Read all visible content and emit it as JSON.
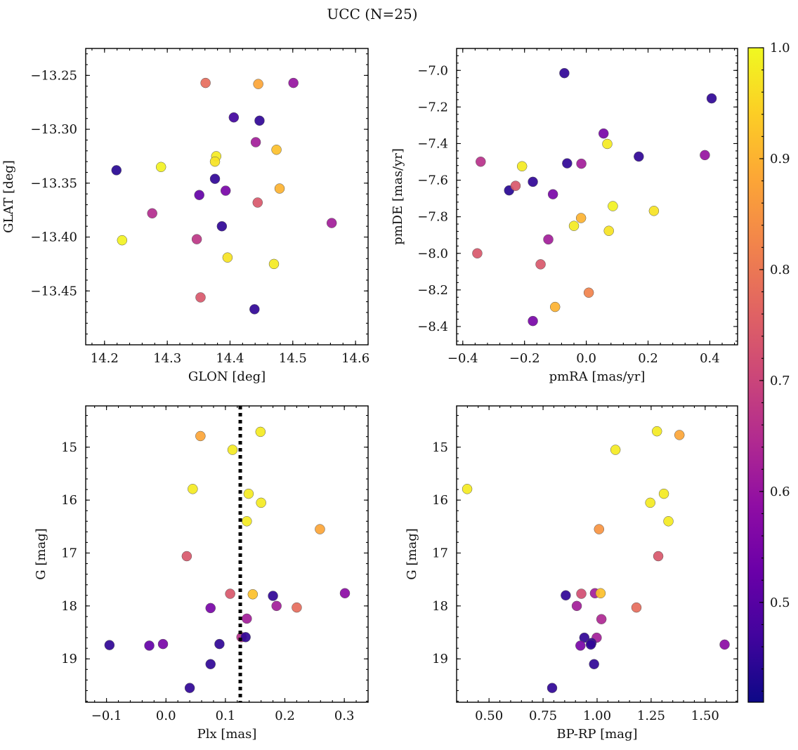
{
  "figure_title": "UCC (N=25)",
  "chart_data": [
    {
      "type": "scatter",
      "title": "",
      "xlabel": "GLON [deg]",
      "ylabel": "GLAT [deg]",
      "xlim": [
        14.17,
        14.62
      ],
      "ylim": [
        -13.5,
        -13.225
      ],
      "y_inverted": false,
      "xticks": [
        14.2,
        14.3,
        14.4,
        14.5,
        14.6
      ],
      "xticklabels": [
        "14.2",
        "14.3",
        "14.4",
        "14.5",
        "14.6"
      ],
      "yticks": [
        -13.25,
        -13.3,
        -13.35,
        -13.4,
        -13.45
      ],
      "yticklabels": [
        "−13.25",
        "−13.30",
        "−13.35",
        "−13.40",
        "−13.45"
      ],
      "x": [
        14.361,
        14.445,
        14.501,
        14.406,
        14.447,
        14.441,
        14.474,
        14.378,
        14.376,
        14.29,
        14.219,
        14.376,
        14.393,
        14.351,
        14.479,
        14.276,
        14.444,
        14.387,
        14.562,
        14.347,
        14.228,
        14.396,
        14.47,
        14.353,
        14.439
      ],
      "y": [
        -13.257,
        -13.258,
        -13.257,
        -13.289,
        -13.292,
        -13.312,
        -13.319,
        -13.325,
        -13.33,
        -13.335,
        -13.338,
        -13.346,
        -13.357,
        -13.361,
        -13.355,
        -13.378,
        -13.368,
        -13.39,
        -13.387,
        -13.402,
        -13.403,
        -13.419,
        -13.425,
        -13.456,
        -13.467
      ],
      "color": [
        0.78,
        0.88,
        0.6,
        0.47,
        0.45,
        0.62,
        0.92,
        0.98,
        0.97,
        0.99,
        0.44,
        0.45,
        0.55,
        0.52,
        0.9,
        0.65,
        0.74,
        0.45,
        0.62,
        0.67,
        0.99,
        0.97,
        0.98,
        0.74,
        0.45
      ]
    },
    {
      "type": "scatter",
      "title": "",
      "xlabel": "pmRA [mas/yr]",
      "ylabel": "pmDE [mas/yr]",
      "xlim": [
        -0.42,
        0.49
      ],
      "ylim": [
        -8.5,
        -6.88
      ],
      "y_inverted": false,
      "xticks": [
        -0.4,
        -0.2,
        0.0,
        0.2,
        0.4
      ],
      "xticklabels": [
        "−0.4",
        "−0.2",
        "0.0",
        "0.2",
        "0.4"
      ],
      "yticks": [
        -7.0,
        -7.2,
        -7.4,
        -7.6,
        -7.8,
        -8.0,
        -8.2,
        -8.4
      ],
      "yticklabels": [
        "−7.0",
        "−7.2",
        "−7.4",
        "−7.6",
        "−7.8",
        "−8.0",
        "−8.2",
        "−8.4"
      ],
      "x": [
        -0.071,
        0.406,
        0.056,
        0.068,
        -0.342,
        -0.208,
        -0.062,
        -0.016,
        0.17,
        0.384,
        -0.25,
        -0.173,
        -0.229,
        -0.108,
        0.086,
        0.219,
        -0.017,
        -0.04,
        0.073,
        -0.123,
        -0.353,
        -0.148,
        0.008,
        -0.101,
        -0.173
      ],
      "y": [
        -7.015,
        -7.153,
        -7.345,
        -7.402,
        -7.499,
        -7.524,
        -7.508,
        -7.51,
        -7.471,
        -7.463,
        -7.656,
        -7.609,
        -7.631,
        -7.677,
        -7.742,
        -7.768,
        -7.807,
        -7.85,
        -7.877,
        -7.924,
        -8.0,
        -8.06,
        -8.215,
        -8.293,
        -8.37
      ],
      "color": [
        0.45,
        0.45,
        0.55,
        0.98,
        0.66,
        0.98,
        0.45,
        0.62,
        0.45,
        0.6,
        0.44,
        0.45,
        0.74,
        0.55,
        0.99,
        0.97,
        0.9,
        0.98,
        0.97,
        0.62,
        0.74,
        0.74,
        0.82,
        0.9,
        0.55
      ]
    },
    {
      "type": "scatter",
      "title": "",
      "xlabel": "Plx [mas]",
      "ylabel": "G [mag]",
      "xlim": [
        -0.135,
        0.34
      ],
      "ylim": [
        19.82,
        14.22
      ],
      "y_inverted": true,
      "xticks": [
        -0.1,
        0.0,
        0.1,
        0.2,
        0.3
      ],
      "xticklabels": [
        "−0.1",
        "0.0",
        "0.1",
        "0.2",
        "0.3"
      ],
      "yticks": [
        15,
        16,
        17,
        18,
        19
      ],
      "yticklabels": [
        "15",
        "16",
        "17",
        "18",
        "19"
      ],
      "vline_x": 0.125,
      "vline_style": "dotted",
      "x": [
        0.058,
        0.159,
        0.112,
        0.045,
        0.139,
        0.16,
        0.136,
        0.259,
        0.035,
        0.108,
        0.146,
        0.18,
        0.301,
        0.186,
        0.075,
        0.22,
        0.136,
        0.127,
        0.134,
        -0.095,
        -0.028,
        -0.005,
        0.09,
        0.075,
        0.04
      ],
      "y": [
        14.79,
        14.71,
        15.05,
        15.79,
        15.88,
        16.05,
        16.4,
        16.55,
        17.06,
        17.77,
        17.78,
        17.81,
        17.76,
        18.0,
        18.04,
        18.03,
        18.24,
        18.59,
        18.59,
        18.74,
        18.75,
        18.72,
        18.72,
        19.1,
        19.55
      ],
      "color": [
        0.88,
        0.98,
        0.98,
        0.98,
        0.98,
        0.98,
        0.98,
        0.88,
        0.74,
        0.74,
        0.92,
        0.45,
        0.58,
        0.62,
        0.55,
        0.78,
        0.62,
        0.66,
        0.45,
        0.45,
        0.52,
        0.55,
        0.45,
        0.45,
        0.45
      ]
    },
    {
      "type": "scatter",
      "title": "",
      "xlabel": "BP-RP [mag]",
      "ylabel": "G [mag]",
      "xlim": [
        0.35,
        1.65
      ],
      "ylim": [
        19.82,
        14.22
      ],
      "y_inverted": true,
      "xticks": [
        0.5,
        0.75,
        1.0,
        1.25,
        1.5
      ],
      "xticklabels": [
        "0.50",
        "0.75",
        "1.00",
        "1.25",
        "1.50"
      ],
      "yticks": [
        15,
        16,
        17,
        18,
        19
      ],
      "yticklabels": [
        "15",
        "16",
        "17",
        "18",
        "19"
      ],
      "x": [
        1.277,
        1.381,
        1.085,
        0.399,
        1.309,
        1.246,
        1.33,
        1.009,
        1.283,
        0.855,
        0.927,
        0.99,
        1.016,
        0.906,
        1.182,
        1.02,
        0.998,
        0.941,
        0.974,
        0.923,
        0.971,
        1.59,
        0.986,
        0.792
      ],
      "y": [
        14.7,
        14.77,
        15.05,
        15.79,
        15.88,
        16.05,
        16.4,
        16.55,
        17.06,
        17.8,
        17.77,
        17.76,
        17.76,
        18.0,
        18.03,
        18.25,
        18.6,
        18.6,
        18.7,
        18.75,
        18.73,
        18.73,
        19.1,
        19.55
      ],
      "color": [
        0.98,
        0.88,
        0.98,
        0.98,
        0.98,
        0.98,
        0.98,
        0.85,
        0.74,
        0.45,
        0.72,
        0.62,
        0.92,
        0.62,
        0.78,
        0.64,
        0.62,
        0.45,
        0.45,
        0.55,
        0.45,
        0.58,
        0.45,
        0.45
      ]
    }
  ],
  "colorbar": {
    "colormap": "plasma",
    "range": [
      0.41,
      1.0
    ],
    "ticks": [
      0.5,
      0.6,
      0.7,
      0.8,
      0.9,
      1.0
    ],
    "ticklabels": [
      "0.5",
      "0.6",
      "0.7",
      "0.8",
      "0.9",
      "1.0"
    ]
  }
}
